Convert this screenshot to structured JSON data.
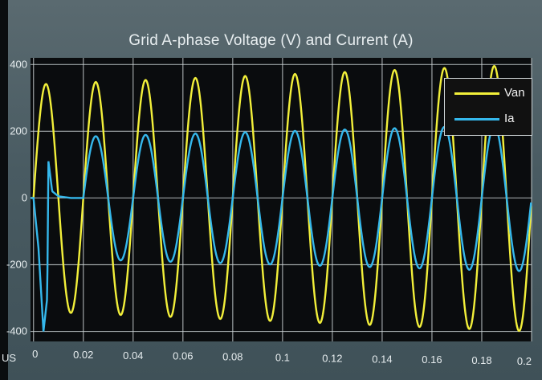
{
  "chart_data": {
    "type": "line",
    "title": "Grid A-phase Voltage (V) and Current (A)",
    "xlabel": "",
    "ylabel": "",
    "xlim": [
      -0.0012,
      0.2
    ],
    "ylim": [
      -430,
      420
    ],
    "x_ticks": [
      "0",
      "0.02",
      "0.04",
      "0.06",
      "0.08",
      "0.1",
      "0.12",
      "0.14",
      "0.16",
      "0.18",
      "0.2"
    ],
    "x_tick_values": [
      0,
      0.02,
      0.04,
      0.06,
      0.08,
      0.1,
      0.12,
      0.14,
      0.16,
      0.18,
      0.2
    ],
    "y_ticks": [
      "400",
      "200",
      "0",
      "-200",
      "-400"
    ],
    "y_tick_values": [
      400,
      200,
      0,
      -200,
      -400
    ],
    "grid": true,
    "legend_position": "top-right",
    "series": [
      {
        "name": "Van",
        "color": "#f2ef3a",
        "frequency_hz": 50,
        "amplitude_start": 340,
        "amplitude_end": 400,
        "phase": "sine"
      },
      {
        "name": "Ia",
        "color": "#35b8ec",
        "frequency_hz": 50,
        "amplitude": 180,
        "phase_lag_deg": 180,
        "transient": [
          {
            "t": 0.0,
            "v": 0
          },
          {
            "t": 0.002,
            "v": -150
          },
          {
            "t": 0.004,
            "v": -400
          },
          {
            "t": 0.0055,
            "v": -300
          },
          {
            "t": 0.006,
            "v": 110
          },
          {
            "t": 0.0075,
            "v": 20
          },
          {
            "t": 0.01,
            "v": 5
          },
          {
            "t": 0.015,
            "v": 0
          },
          {
            "t": 0.0198,
            "v": 0
          }
        ]
      }
    ]
  },
  "corner_label": "US"
}
